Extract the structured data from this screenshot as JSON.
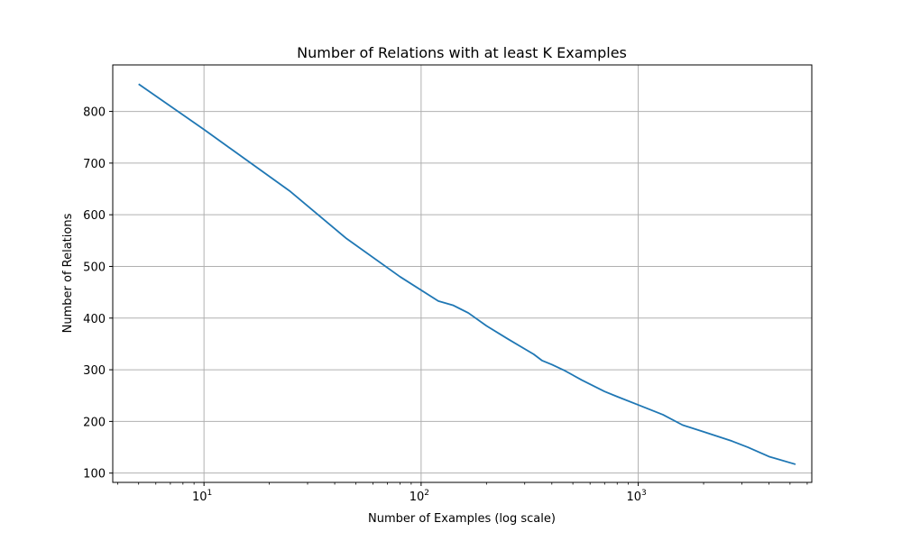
{
  "chart_data": {
    "type": "line",
    "title": "Number of Relations with at least K Examples",
    "xlabel": "Number of Examples (log scale)",
    "ylabel": "Number of Relations",
    "x_scale": "log",
    "xlim": [
      3.8,
      6300
    ],
    "ylim": [
      82,
      890
    ],
    "x_major_ticks": [
      10,
      100,
      1000
    ],
    "x_tick_labels": [
      {
        "base": "10",
        "exp": "1"
      },
      {
        "base": "10",
        "exp": "2"
      },
      {
        "base": "10",
        "exp": "3"
      }
    ],
    "y_ticks": [
      100,
      200,
      300,
      400,
      500,
      600,
      700,
      800
    ],
    "y_tick_labels": [
      "100",
      "200",
      "300",
      "400",
      "500",
      "600",
      "700",
      "800"
    ],
    "grid": true,
    "line_color": "#1f77b4",
    "series": [
      {
        "x": [
          5,
          10,
          25,
          45,
          80,
          120,
          140,
          165,
          200,
          250,
          330,
          360,
          400,
          460,
          550,
          700,
          800,
          1000,
          1300,
          1600,
          2000,
          2700,
          3200,
          4000,
          5300
        ],
        "y": [
          853,
          765,
          645,
          555,
          480,
          433,
          425,
          410,
          385,
          360,
          330,
          318,
          310,
          298,
          280,
          258,
          248,
          232,
          213,
          193,
          180,
          162,
          150,
          132,
          117
        ]
      }
    ]
  }
}
